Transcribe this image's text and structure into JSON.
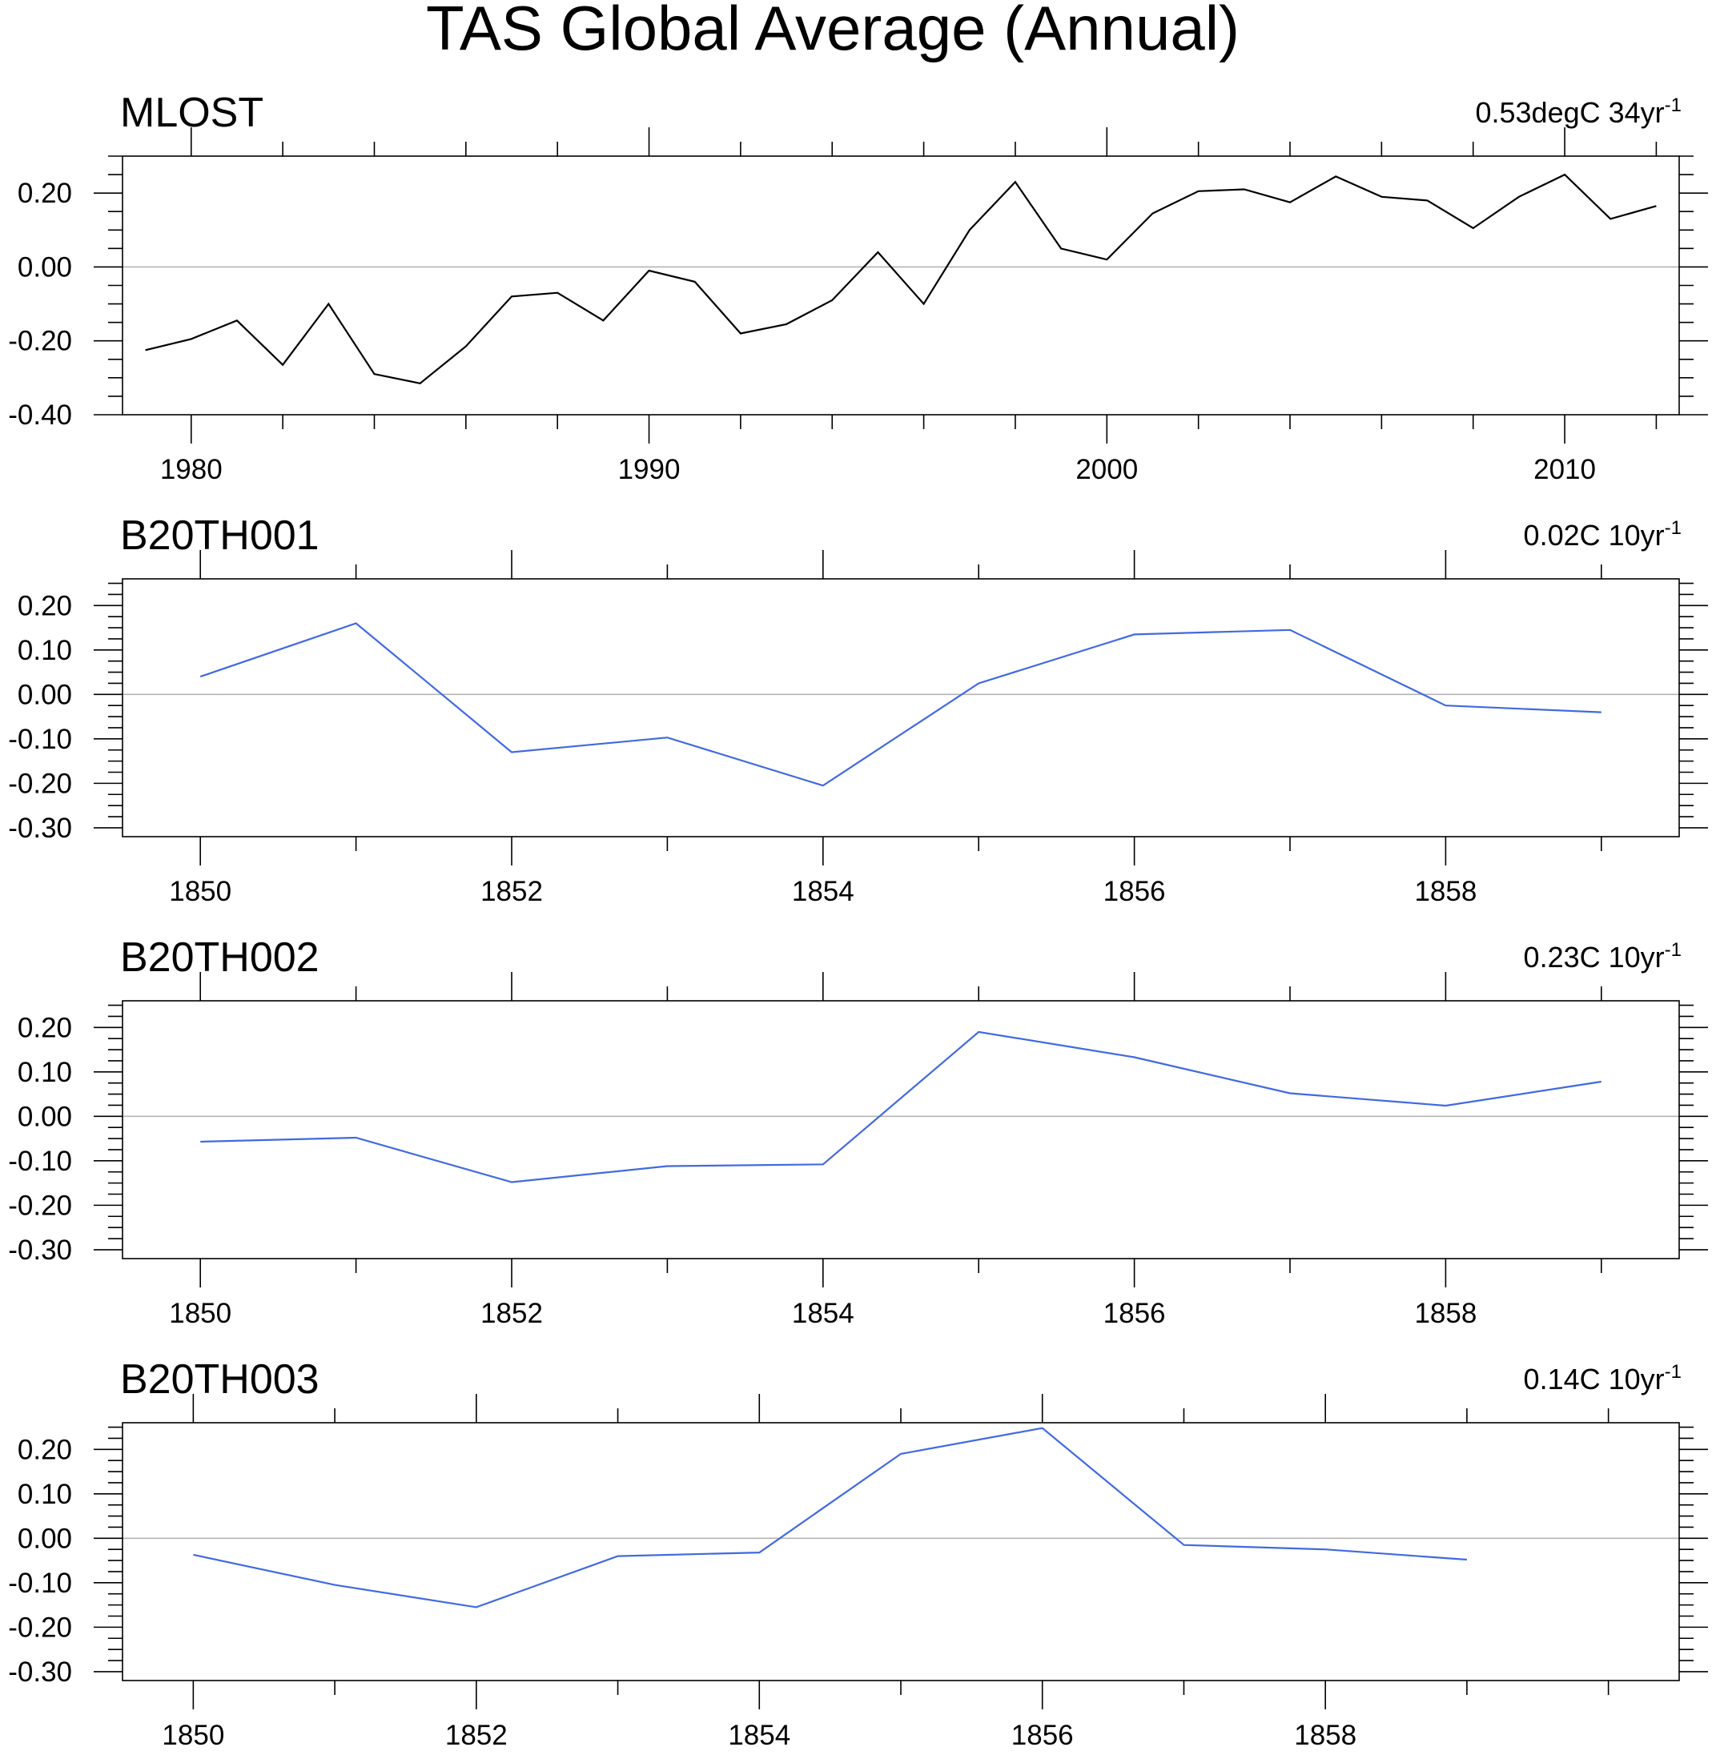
{
  "title": "TAS Global Average (Annual)",
  "colors": {
    "observed": "#000000",
    "model": "#4169e1",
    "zero_line": "#b4b4b4"
  },
  "chart_data": [
    {
      "type": "line",
      "title": "MLOST",
      "trend_label": "0.53degC 34yr",
      "trend_superscript": "-1",
      "xlabel": "",
      "ylabel": "",
      "xlim": [
        1978.5,
        2012.5
      ],
      "ylim": [
        -0.4,
        0.3
      ],
      "xticks": [
        1980,
        1990,
        2000,
        2010
      ],
      "xtick_labels": [
        "1980",
        "1990",
        "2000",
        "2010"
      ],
      "yticks": [
        -0.4,
        -0.2,
        0.0,
        0.2
      ],
      "ytick_labels": [
        "-0.40",
        "-0.20",
        "0.00",
        "0.20"
      ],
      "series": [
        {
          "name": "MLOST",
          "color": "#000000",
          "x": [
            1979,
            1980,
            1981,
            1982,
            1983,
            1984,
            1985,
            1986,
            1987,
            1988,
            1989,
            1990,
            1991,
            1992,
            1993,
            1994,
            1995,
            1996,
            1997,
            1998,
            1999,
            2000,
            2001,
            2002,
            2003,
            2004,
            2005,
            2006,
            2007,
            2008,
            2009,
            2010,
            2011,
            2012
          ],
          "values": [
            -0.225,
            -0.195,
            -0.145,
            -0.265,
            -0.1,
            -0.29,
            -0.315,
            -0.215,
            -0.08,
            -0.07,
            -0.145,
            -0.01,
            -0.04,
            -0.18,
            -0.155,
            -0.09,
            0.04,
            -0.1,
            0.1,
            0.23,
            0.05,
            0.02,
            0.145,
            0.205,
            0.21,
            0.175,
            0.245,
            0.19,
            0.18,
            0.105,
            0.19,
            0.25,
            0.13,
            0.165
          ]
        }
      ]
    },
    {
      "type": "line",
      "title": "B20TH001",
      "trend_label": "0.02C 10yr",
      "trend_superscript": "-1",
      "xlabel": "",
      "ylabel": "",
      "xlim": [
        1849.5,
        1859.5
      ],
      "ylim": [
        -0.32,
        0.26
      ],
      "xticks": [
        1850,
        1852,
        1854,
        1856,
        1858
      ],
      "xtick_labels": [
        "1850",
        "1852",
        "1854",
        "1856",
        "1858"
      ],
      "yticks": [
        -0.3,
        -0.2,
        -0.1,
        0.0,
        0.1,
        0.2
      ],
      "ytick_labels": [
        "-0.30",
        "-0.20",
        "-0.10",
        "0.00",
        "0.10",
        "0.20"
      ],
      "series": [
        {
          "name": "B20TH001",
          "color": "#4169e1",
          "x": [
            1850,
            1851,
            1852,
            1853,
            1854,
            1855,
            1856,
            1857,
            1858,
            1859
          ],
          "values": [
            0.04,
            0.16,
            -0.13,
            -0.097,
            -0.205,
            0.025,
            0.135,
            0.145,
            -0.025,
            -0.04
          ]
        }
      ]
    },
    {
      "type": "line",
      "title": "B20TH002",
      "trend_label": "0.23C 10yr",
      "trend_superscript": "-1",
      "xlabel": "",
      "ylabel": "",
      "xlim": [
        1849.5,
        1859.5
      ],
      "ylim": [
        -0.32,
        0.26
      ],
      "xticks": [
        1850,
        1852,
        1854,
        1856,
        1858
      ],
      "xtick_labels": [
        "1850",
        "1852",
        "1854",
        "1856",
        "1858"
      ],
      "yticks": [
        -0.3,
        -0.2,
        -0.1,
        0.0,
        0.1,
        0.2
      ],
      "ytick_labels": [
        "-0.30",
        "-0.20",
        "-0.10",
        "0.00",
        "0.10",
        "0.20"
      ],
      "series": [
        {
          "name": "B20TH002",
          "color": "#4169e1",
          "x": [
            1850,
            1851,
            1852,
            1853,
            1854,
            1855,
            1856,
            1857,
            1858,
            1859
          ],
          "values": [
            -0.057,
            -0.048,
            -0.148,
            -0.112,
            -0.108,
            0.19,
            0.133,
            0.052,
            0.024,
            0.078
          ]
        }
      ]
    },
    {
      "type": "line",
      "title": "B20TH003",
      "trend_label": "0.14C 10yr",
      "trend_superscript": "-1",
      "xlabel": "",
      "ylabel": "",
      "xlim": [
        1849.5,
        1860.5
      ],
      "ylim": [
        -0.32,
        0.26
      ],
      "xticks": [
        1850,
        1852,
        1854,
        1856,
        1858
      ],
      "xtick_labels": [
        "1850",
        "1852",
        "1854",
        "1856",
        "1858"
      ],
      "yticks": [
        -0.3,
        -0.2,
        -0.1,
        0.0,
        0.1,
        0.2
      ],
      "ytick_labels": [
        "-0.30",
        "-0.20",
        "-0.10",
        "0.00",
        "0.10",
        "0.20"
      ],
      "series": [
        {
          "name": "B20TH003",
          "color": "#4169e1",
          "x": [
            1850,
            1851,
            1852,
            1853,
            1854,
            1855,
            1856,
            1857,
            1858,
            1859
          ],
          "values": [
            -0.037,
            -0.105,
            -0.155,
            -0.04,
            -0.032,
            0.19,
            0.248,
            -0.015,
            -0.025,
            -0.048
          ]
        }
      ]
    }
  ]
}
